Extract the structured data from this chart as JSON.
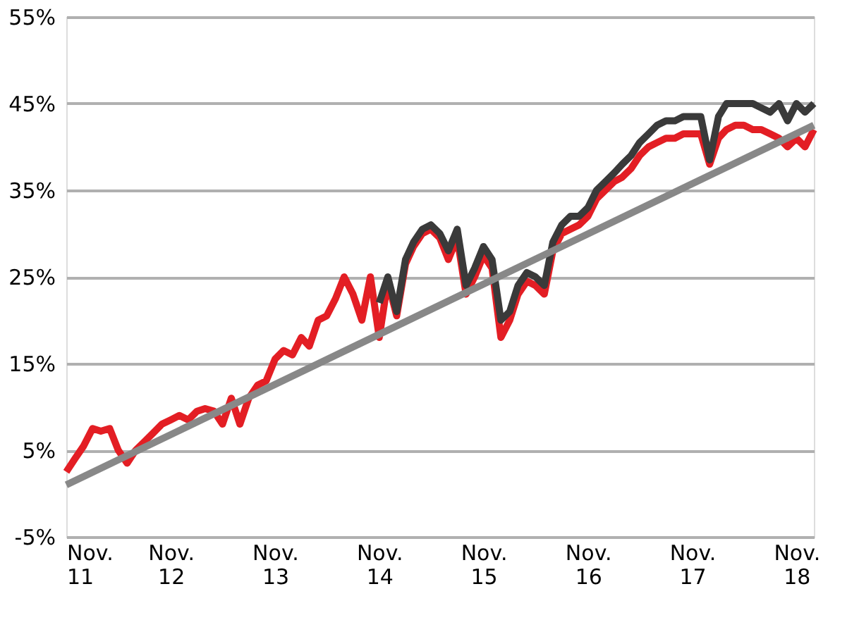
{
  "chart_data": {
    "type": "line",
    "xlim": [
      "2011-11",
      "2019-01"
    ],
    "xticks": [
      {
        "value": "2011-11",
        "label": "Nov. 11"
      },
      {
        "value": "2012-11",
        "label": "Nov. 12"
      },
      {
        "value": "2013-11",
        "label": "Nov. 13"
      },
      {
        "value": "2014-11",
        "label": "Nov. 14"
      },
      {
        "value": "2015-11",
        "label": "Nov. 15"
      },
      {
        "value": "2016-11",
        "label": "Nov. 16"
      },
      {
        "value": "2017-11",
        "label": "Nov. 17"
      },
      {
        "value": "2018-11",
        "label": "Nov. 18"
      }
    ],
    "ylim": [
      -5,
      55
    ],
    "yticks": [
      {
        "value": -5,
        "label": "-5%"
      },
      {
        "value": 5,
        "label": "5%"
      },
      {
        "value": 15,
        "label": "15%"
      },
      {
        "value": 25,
        "label": "25%"
      },
      {
        "value": 35,
        "label": "35%"
      },
      {
        "value": 45,
        "label": "45%"
      },
      {
        "value": 55,
        "label": "55%"
      }
    ],
    "grid": "y",
    "marker": "none",
    "line_style": "solid",
    "series": [
      {
        "color": "#e31e24",
        "x": [
          "2011-11",
          "2011-12",
          "2012-01",
          "2012-02",
          "2012-03",
          "2012-04",
          "2012-05",
          "2012-06",
          "2012-07",
          "2012-08",
          "2012-09",
          "2012-10",
          "2012-11",
          "2012-12",
          "2013-01",
          "2013-02",
          "2013-03",
          "2013-04",
          "2013-05",
          "2013-06",
          "2013-07",
          "2013-08",
          "2013-09",
          "2013-10",
          "2013-11",
          "2013-12",
          "2014-01",
          "2014-02",
          "2014-03",
          "2014-04",
          "2014-05",
          "2014-06",
          "2014-07",
          "2014-08",
          "2014-09",
          "2014-10",
          "2014-11",
          "2014-12",
          "2015-01",
          "2015-02",
          "2015-03",
          "2015-04",
          "2015-05",
          "2015-06",
          "2015-07",
          "2015-08",
          "2015-09",
          "2015-10",
          "2015-11",
          "2015-12",
          "2016-01",
          "2016-02",
          "2016-03",
          "2016-04",
          "2016-05",
          "2016-06",
          "2016-07",
          "2016-08",
          "2016-09",
          "2016-10",
          "2016-11",
          "2016-12",
          "2017-01",
          "2017-02",
          "2017-03",
          "2017-04",
          "2017-05",
          "2017-06",
          "2017-07",
          "2017-08",
          "2017-09",
          "2017-10",
          "2017-11",
          "2017-12",
          "2018-01",
          "2018-02",
          "2018-03",
          "2018-04",
          "2018-05",
          "2018-06",
          "2018-07",
          "2018-08",
          "2018-09",
          "2018-10",
          "2018-11",
          "2018-12",
          "2019-01"
        ],
        "values": [
          2.5,
          4,
          5.5,
          7.5,
          7.2,
          7.5,
          5,
          3.5,
          5,
          6,
          7,
          8,
          8.5,
          9,
          8.5,
          9.5,
          9.8,
          9.5,
          8,
          11,
          8,
          11,
          12.5,
          13,
          15.5,
          16.5,
          16,
          18,
          17,
          20,
          20.5,
          22.5,
          25,
          23,
          20,
          25,
          18,
          24.5,
          20.5,
          26.5,
          28.5,
          30,
          30.5,
          29.5,
          27,
          29.5,
          23,
          25,
          27.5,
          26,
          18,
          20,
          23,
          24.5,
          24,
          23,
          28,
          30,
          30.5,
          31,
          32,
          34,
          35,
          36,
          36.5,
          37.5,
          39,
          40,
          40.5,
          41,
          41,
          41.5,
          41.5,
          41.5,
          38,
          41,
          42,
          42.5,
          42.5,
          42,
          42,
          41.5,
          41,
          40,
          41,
          40,
          42
        ]
      },
      {
        "color": "#3a3a3a",
        "x": [
          "2014-11",
          "2014-12",
          "2015-01",
          "2015-02",
          "2015-03",
          "2015-04",
          "2015-05",
          "2015-06",
          "2015-07",
          "2015-08",
          "2015-09",
          "2015-10",
          "2015-11",
          "2015-12",
          "2016-01",
          "2016-02",
          "2016-03",
          "2016-04",
          "2016-05",
          "2016-06",
          "2016-07",
          "2016-08",
          "2016-09",
          "2016-10",
          "2016-11",
          "2016-12",
          "2017-01",
          "2017-02",
          "2017-03",
          "2017-04",
          "2017-05",
          "2017-06",
          "2017-07",
          "2017-08",
          "2017-09",
          "2017-10",
          "2017-11",
          "2017-12",
          "2018-01",
          "2018-02",
          "2018-03",
          "2018-04",
          "2018-05",
          "2018-06",
          "2018-07",
          "2018-08",
          "2018-09",
          "2018-10",
          "2018-11",
          "2018-12",
          "2019-01"
        ],
        "values": [
          22,
          25,
          21,
          27,
          29,
          30.5,
          31,
          30,
          28,
          30.5,
          24,
          26,
          28.5,
          27,
          20,
          21,
          24,
          25.5,
          25,
          24,
          29,
          31,
          32,
          32,
          33,
          35,
          36,
          37,
          38,
          39,
          40.5,
          41.5,
          42.5,
          43,
          43,
          43.5,
          43.5,
          43.5,
          38.5,
          43.5,
          45,
          45,
          45,
          45,
          44.5,
          44,
          45,
          43,
          45,
          44,
          45
        ]
      },
      {
        "color": "#888888",
        "x": [
          "2011-11",
          "2019-01"
        ],
        "values": [
          1,
          42.5
        ]
      }
    ]
  }
}
